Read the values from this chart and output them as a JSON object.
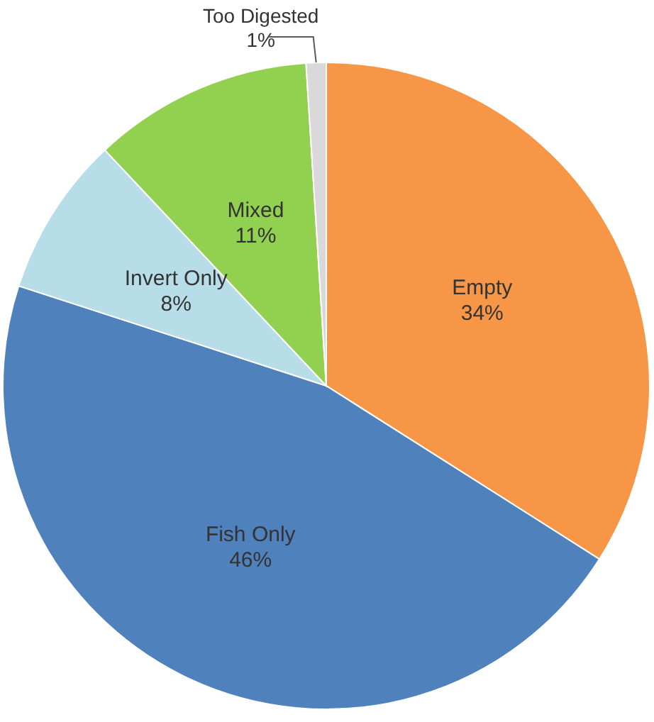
{
  "chart_data": {
    "type": "pie",
    "categories": [
      "Empty",
      "Fish Only",
      "Invert Only",
      "Mixed",
      "Too Digested"
    ],
    "values": [
      34,
      46,
      8,
      11,
      1
    ],
    "value_labels": [
      "34%",
      "46%",
      "8%",
      "11%",
      "1%"
    ],
    "colors": [
      "#f79646",
      "#4f81bd",
      "#b7dee8",
      "#92d050",
      "#d9d9d9"
    ]
  }
}
